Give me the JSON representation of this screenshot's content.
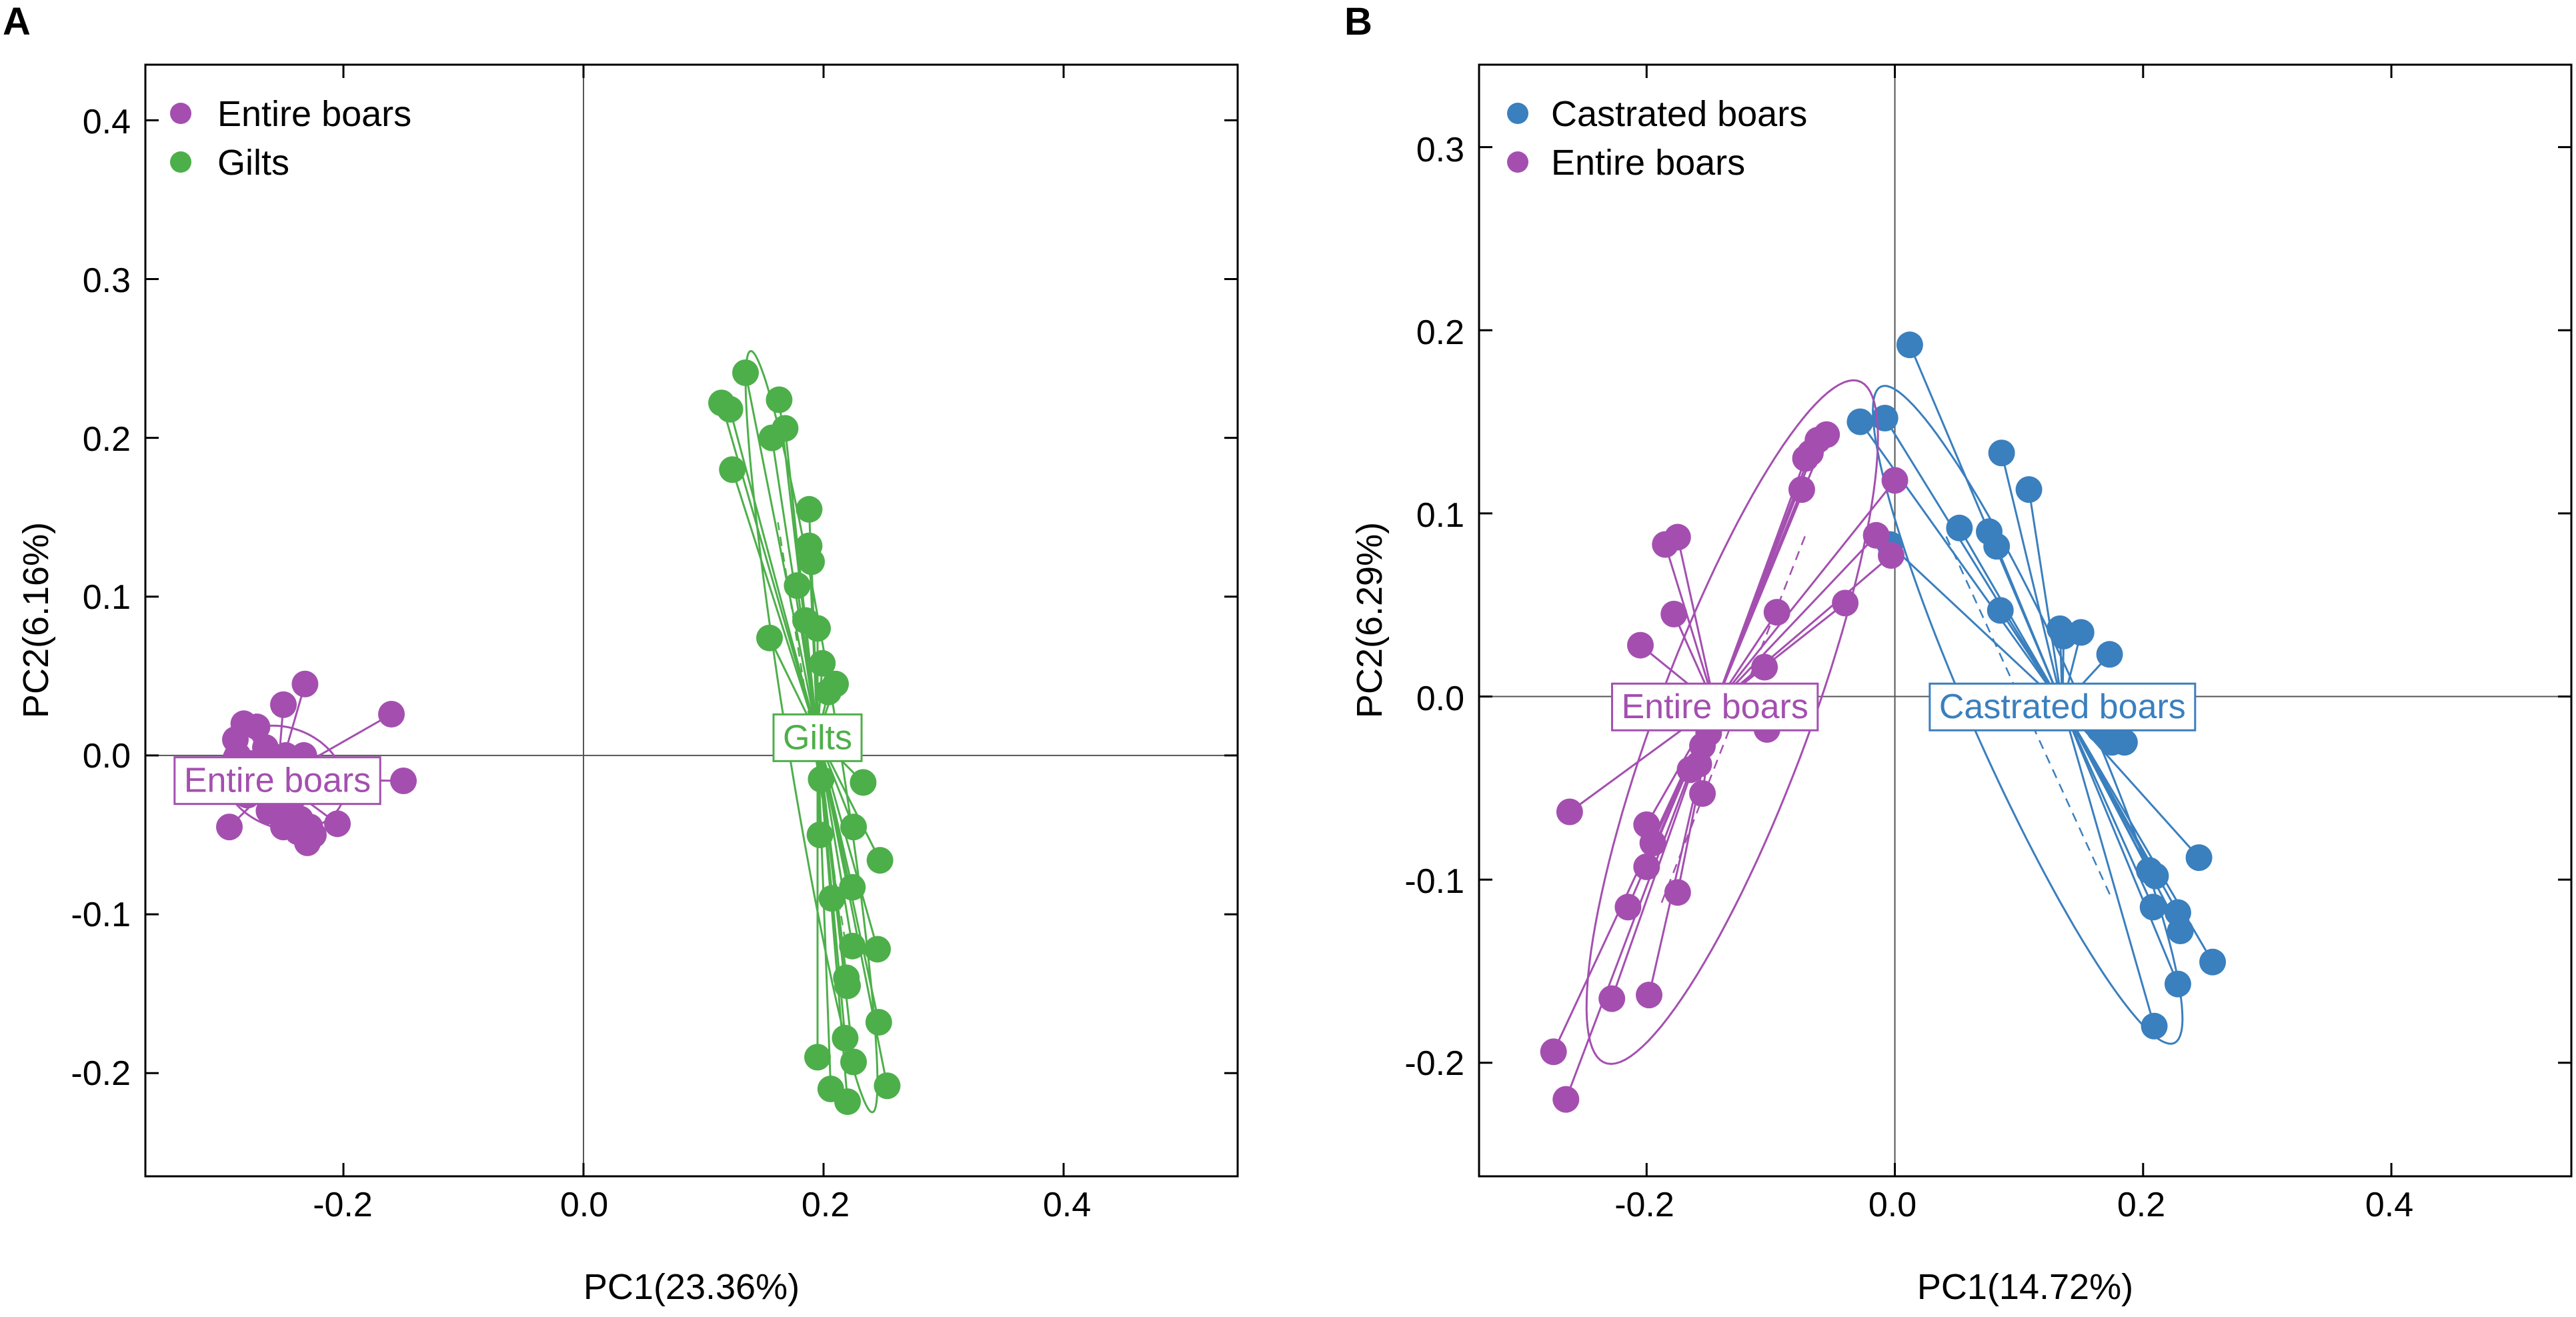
{
  "chart_data": [
    {
      "type": "scatter",
      "panel_letter": "A",
      "title": "",
      "xlabel": "PC1(23.36%)",
      "ylabel": "PC2(6.16%)",
      "xlim": [
        -0.365,
        0.545
      ],
      "ylim": [
        -0.265,
        0.435
      ],
      "xticks": [
        -0.2,
        0.0,
        0.2,
        0.4
      ],
      "yticks": [
        -0.2,
        -0.1,
        0.0,
        0.1,
        0.2,
        0.3,
        0.4
      ],
      "xtick_labels": [
        "-0.2",
        "0.0",
        "0.2",
        "0.4"
      ],
      "ytick_labels": [
        "-0.2",
        "-0.1",
        "0.0",
        "0.1",
        "0.2",
        "0.3",
        "0.4"
      ],
      "zero_lines": true,
      "legend_position": "top-left",
      "legend": [
        "Entire boars",
        "Gilts"
      ],
      "series": [
        {
          "name": "Entire boars",
          "color": "#A44FB0",
          "label": "Entire boars",
          "centroid": [
            -0.255,
            -0.015
          ],
          "ellipse": {
            "cx": -0.25,
            "cy": -0.014,
            "rx": 0.052,
            "ry": 0.032,
            "angle": -10
          },
          "points": [
            [
              -0.295,
              -0.045
            ],
            [
              -0.288,
              0.0
            ],
            [
              -0.283,
              0.02
            ],
            [
              -0.28,
              -0.025
            ],
            [
              -0.278,
              -0.005
            ],
            [
              -0.272,
              0.018
            ],
            [
              -0.27,
              -0.012
            ],
            [
              -0.265,
              0.005
            ],
            [
              -0.262,
              -0.035
            ],
            [
              -0.26,
              -0.02
            ],
            [
              -0.256,
              -0.03
            ],
            [
              -0.252,
              -0.038
            ],
            [
              -0.25,
              -0.045
            ],
            [
              -0.248,
              0.0
            ],
            [
              -0.245,
              -0.01
            ],
            [
              -0.242,
              -0.018
            ],
            [
              -0.24,
              -0.025
            ],
            [
              -0.238,
              -0.048
            ],
            [
              -0.236,
              -0.04
            ],
            [
              -0.233,
              0.0
            ],
            [
              -0.232,
              0.045
            ],
            [
              -0.23,
              -0.055
            ],
            [
              -0.228,
              -0.045
            ],
            [
              -0.225,
              -0.05
            ],
            [
              -0.25,
              0.032
            ],
            [
              -0.205,
              -0.043
            ],
            [
              -0.16,
              0.026
            ],
            [
              -0.15,
              -0.016
            ],
            [
              -0.268,
              -0.008
            ],
            [
              -0.29,
              0.01
            ]
          ]
        },
        {
          "name": "Gilts",
          "color": "#4DAF4A",
          "label": "Gilts",
          "centroid": [
            0.195,
            0.012
          ],
          "ellipse": {
            "cx": 0.19,
            "cy": 0.015,
            "rx": 0.245,
            "ry": 0.021,
            "angle": -78
          },
          "points": [
            [
              0.115,
              0.222
            ],
            [
              0.122,
              0.218
            ],
            [
              0.135,
              0.241
            ],
            [
              0.163,
              0.224
            ],
            [
              0.168,
              0.206
            ],
            [
              0.157,
              0.2
            ],
            [
              0.124,
              0.18
            ],
            [
              0.188,
              0.155
            ],
            [
              0.188,
              0.132
            ],
            [
              0.19,
              0.122
            ],
            [
              0.178,
              0.107
            ],
            [
              0.185,
              0.085
            ],
            [
              0.195,
              0.08
            ],
            [
              0.155,
              0.074
            ],
            [
              0.199,
              0.058
            ],
            [
              0.21,
              0.045
            ],
            [
              0.204,
              0.04
            ],
            [
              0.198,
              -0.015
            ],
            [
              0.197,
              -0.05
            ],
            [
              0.225,
              -0.045
            ],
            [
              0.233,
              -0.017
            ],
            [
              0.247,
              -0.066
            ],
            [
              0.224,
              -0.083
            ],
            [
              0.207,
              -0.09
            ],
            [
              0.224,
              -0.12
            ],
            [
              0.245,
              -0.122
            ],
            [
              0.219,
              -0.14
            ],
            [
              0.22,
              -0.145
            ],
            [
              0.218,
              -0.178
            ],
            [
              0.246,
              -0.168
            ],
            [
              0.195,
              -0.19
            ],
            [
              0.225,
              -0.193
            ],
            [
              0.206,
              -0.21
            ],
            [
              0.22,
              -0.218
            ],
            [
              0.253,
              -0.208
            ]
          ]
        }
      ]
    },
    {
      "type": "scatter",
      "panel_letter": "B",
      "title": "",
      "xlabel": "PC1(14.72%)",
      "ylabel": "PC2(6.29%)",
      "xlim": [
        -0.335,
        0.545
      ],
      "ylim": [
        -0.262,
        0.345
      ],
      "xticks": [
        -0.2,
        0.0,
        0.2,
        0.4
      ],
      "yticks": [
        -0.2,
        -0.1,
        0.0,
        0.1,
        0.2,
        0.3
      ],
      "xtick_labels": [
        "-0.2",
        "0.0",
        "0.2",
        "0.4"
      ],
      "ytick_labels": [
        "-0.2",
        "-0.1",
        "0.0",
        "0.1",
        "0.2",
        "0.3"
      ],
      "zero_lines": true,
      "legend_position": "top-left",
      "legend": [
        "Castrated boars",
        "Entire boars"
      ],
      "series": [
        {
          "name": "Castrated boars",
          "color": "#3A7FBE",
          "label": "Castrated boars",
          "centroid": [
            0.135,
            -0.005
          ],
          "ellipse": {
            "cx": 0.107,
            "cy": -0.01,
            "rx": 0.215,
            "ry": 0.04,
            "angle": -56
          },
          "points": [
            [
              0.012,
              0.192
            ],
            [
              -0.008,
              0.152
            ],
            [
              -0.028,
              0.15
            ],
            [
              0.086,
              0.133
            ],
            [
              0.108,
              0.113
            ],
            [
              0.052,
              0.092
            ],
            [
              0.076,
              0.09
            ],
            [
              0.082,
              0.082
            ],
            [
              -0.004,
              0.083
            ],
            [
              0.085,
              0.047
            ],
            [
              0.15,
              0.035
            ],
            [
              0.133,
              0.037
            ],
            [
              0.173,
              0.023
            ],
            [
              0.136,
              0.033
            ],
            [
              0.16,
              -0.003
            ],
            [
              0.168,
              -0.012
            ],
            [
              0.17,
              -0.02
            ],
            [
              0.178,
              -0.018
            ],
            [
              0.165,
              -0.018
            ],
            [
              0.175,
              -0.025
            ],
            [
              0.185,
              -0.025
            ],
            [
              0.205,
              -0.095
            ],
            [
              0.21,
              -0.098
            ],
            [
              0.245,
              -0.088
            ],
            [
              0.208,
              -0.115
            ],
            [
              0.228,
              -0.118
            ],
            [
              0.23,
              -0.128
            ],
            [
              0.256,
              -0.145
            ],
            [
              0.228,
              -0.157
            ],
            [
              0.209,
              -0.18
            ]
          ]
        },
        {
          "name": "Entire boars",
          "color": "#A44FB0",
          "label": "Entire boars",
          "centroid": [
            -0.145,
            -0.005
          ],
          "ellipse": {
            "cx": -0.131,
            "cy": -0.014,
            "rx": 0.213,
            "ry": 0.057,
            "angle": 60
          },
          "points": [
            [
              -0.055,
              0.143
            ],
            [
              -0.062,
              0.14
            ],
            [
              -0.068,
              0.133
            ],
            [
              -0.072,
              0.13
            ],
            [
              -0.075,
              0.113
            ],
            [
              0.0,
              0.118
            ],
            [
              -0.015,
              0.088
            ],
            [
              -0.003,
              0.077
            ],
            [
              -0.175,
              0.087
            ],
            [
              -0.185,
              0.083
            ],
            [
              -0.178,
              0.045
            ],
            [
              -0.205,
              0.028
            ],
            [
              -0.04,
              0.051
            ],
            [
              -0.095,
              0.046
            ],
            [
              -0.105,
              0.016
            ],
            [
              -0.103,
              -0.018
            ],
            [
              -0.15,
              -0.02
            ],
            [
              -0.155,
              -0.027
            ],
            [
              -0.158,
              -0.037
            ],
            [
              -0.165,
              -0.04
            ],
            [
              -0.155,
              -0.053
            ],
            [
              -0.2,
              -0.07
            ],
            [
              -0.195,
              -0.08
            ],
            [
              -0.2,
              -0.093
            ],
            [
              -0.262,
              -0.063
            ],
            [
              -0.175,
              -0.107
            ],
            [
              -0.215,
              -0.115
            ],
            [
              -0.198,
              -0.163
            ],
            [
              -0.228,
              -0.165
            ],
            [
              -0.275,
              -0.194
            ],
            [
              -0.265,
              -0.22
            ]
          ]
        }
      ]
    }
  ]
}
